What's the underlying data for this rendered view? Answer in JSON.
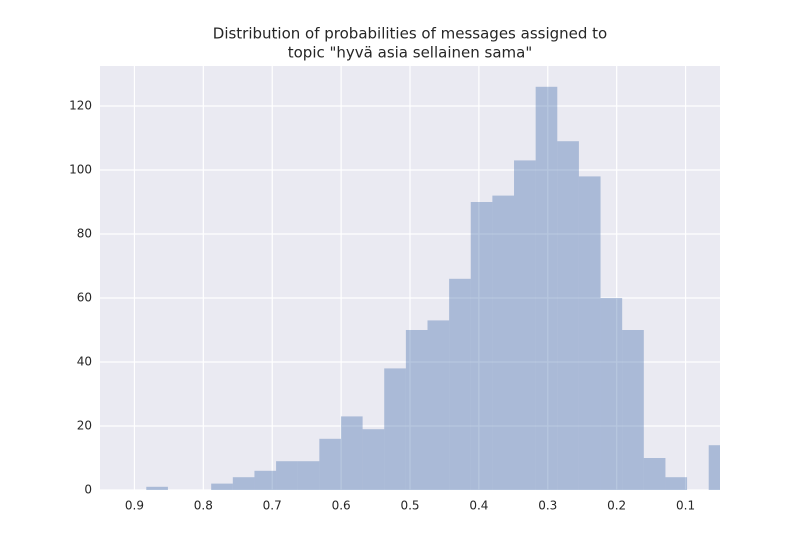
{
  "chart_data": {
    "type": "histogram",
    "title": [
      "Distribution of probabilities of messages assigned to",
      "topic \"hyvä asia sellainen sama\""
    ],
    "bins": [
      0.035,
      0.0664,
      0.0978,
      0.1292,
      0.1606,
      0.192,
      0.2234,
      0.2548,
      0.2862,
      0.3176,
      0.349,
      0.3804,
      0.4118,
      0.4432,
      0.4746,
      0.506,
      0.5374,
      0.5688,
      0.6002,
      0.6316,
      0.663,
      0.6944,
      0.7258,
      0.7572,
      0.7886,
      0.82,
      0.8514,
      0.8828
    ],
    "values": [
      14,
      0,
      4,
      10,
      50,
      60,
      98,
      109,
      126,
      103,
      92,
      90,
      66,
      53,
      50,
      38,
      19,
      23,
      16,
      9,
      9,
      6,
      4,
      2,
      0,
      0,
      1
    ],
    "color": "#4c72b0",
    "alpha": 0.4,
    "xlim": [
      0.95,
      0.05
    ],
    "xticks": [
      0.9,
      0.8,
      0.7,
      0.6,
      0.5,
      0.4,
      0.3,
      0.2,
      0.1
    ],
    "ylim": [
      0,
      132.5
    ],
    "yticks": [
      0,
      20,
      40,
      60,
      80,
      100,
      120
    ],
    "grid": true
  }
}
